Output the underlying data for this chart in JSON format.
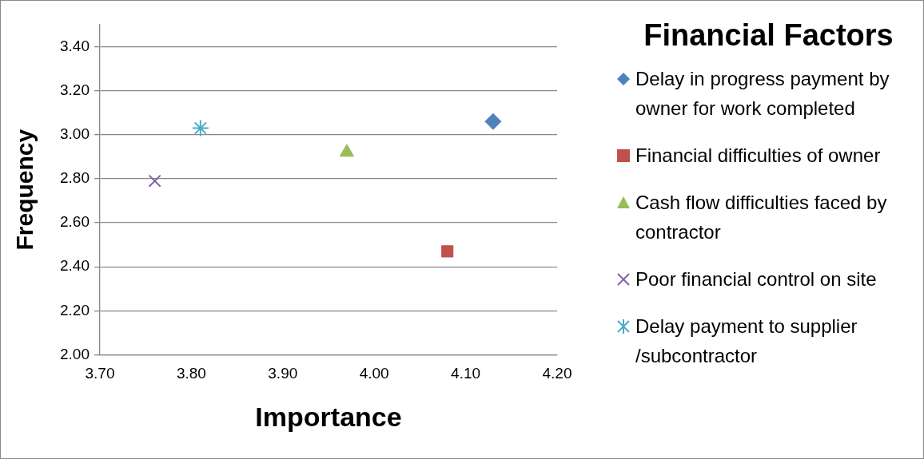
{
  "chart_data": {
    "type": "scatter",
    "xlabel": "Importance",
    "ylabel": "Frequency",
    "legend_title": "Financial Factors",
    "legend": "right",
    "grid": "y",
    "xlim": [
      3.7,
      4.2
    ],
    "xticks": [
      {
        "value": 3.7,
        "label": "3.70"
      },
      {
        "value": 3.8,
        "label": "3.80"
      },
      {
        "value": 3.9,
        "label": "3.90"
      },
      {
        "value": 4.0,
        "label": "4.00"
      },
      {
        "value": 4.1,
        "label": "4.10"
      },
      {
        "value": 4.2,
        "label": "4.20"
      }
    ],
    "ylim": [
      2.0,
      3.5
    ],
    "yticks": [
      {
        "value": 2.0,
        "label": "2.00"
      },
      {
        "value": 2.2,
        "label": "2.20"
      },
      {
        "value": 2.4,
        "label": "2.40"
      },
      {
        "value": 2.6,
        "label": "2.60"
      },
      {
        "value": 2.8,
        "label": "2.80"
      },
      {
        "value": 3.0,
        "label": "3.00"
      },
      {
        "value": 3.2,
        "label": "3.20"
      },
      {
        "value": 3.4,
        "label": "3.40"
      }
    ],
    "series": [
      {
        "name": "Delay in progress payment by owner for work completed",
        "color": "#4f81bd",
        "marker": "diamond",
        "x": [
          4.13
        ],
        "values": [
          3.06
        ]
      },
      {
        "name": "Financial difficulties of owner",
        "color": "#c0504d",
        "marker": "square",
        "x": [
          4.08
        ],
        "values": [
          2.47
        ]
      },
      {
        "name": "Cash flow difficulties faced by contractor",
        "color": "#9bbb59",
        "marker": "triangle",
        "x": [
          3.97
        ],
        "values": [
          2.92
        ]
      },
      {
        "name": "Poor financial control on site",
        "color": "#8064a2",
        "marker": "cross",
        "x": [
          3.76
        ],
        "values": [
          2.79
        ]
      },
      {
        "name": "Delay payment to supplier /subcontractor",
        "color": "#4bacc6",
        "x": [
          3.81
        ],
        "values": [
          3.03
        ]
      }
    ]
  }
}
